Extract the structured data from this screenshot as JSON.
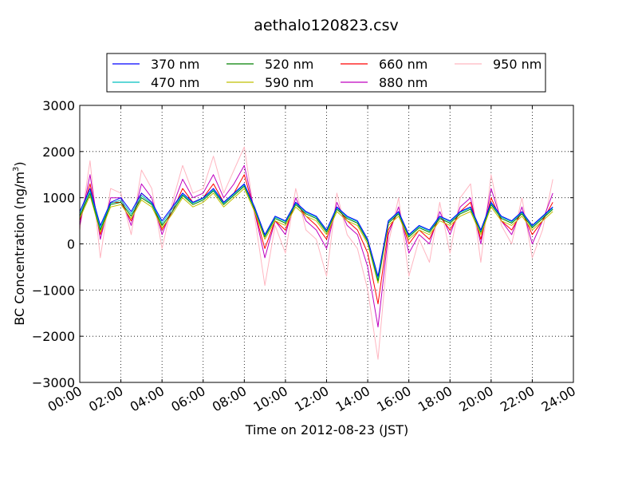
{
  "chart_data": {
    "type": "line",
    "title": "aethalo120823.csv",
    "xlabel": "Time on 2012-08-23 (JST)",
    "ylabel": "BC Concentration (ng/m³)",
    "ylabel_main": "BC Concentration (ng/m",
    "ylabel_sup": "3",
    "ylabel_tail": ")",
    "xlim": [
      "00:00",
      "24:00"
    ],
    "ylim": [
      -3000,
      3000
    ],
    "x_ticks": [
      "00:00",
      "02:00",
      "04:00",
      "06:00",
      "08:00",
      "10:00",
      "12:00",
      "14:00",
      "16:00",
      "18:00",
      "20:00",
      "22:00",
      "24:00"
    ],
    "y_ticks": [
      "3000",
      "2000",
      "1000",
      "0",
      "−1000",
      "−2000",
      "−3000"
    ],
    "grid": true,
    "legend_position": "top-center",
    "x_times": [
      "00:00",
      "00:30",
      "01:00",
      "01:30",
      "02:00",
      "02:30",
      "03:00",
      "03:30",
      "04:00",
      "04:30",
      "05:00",
      "05:30",
      "06:00",
      "06:30",
      "07:00",
      "07:30",
      "08:00",
      "08:30",
      "09:00",
      "09:30",
      "10:00",
      "10:30",
      "11:00",
      "11:30",
      "12:00",
      "12:30",
      "13:00",
      "13:30",
      "14:00",
      "14:30",
      "15:00",
      "15:30",
      "16:00",
      "16:30",
      "17:00",
      "17:30",
      "18:00",
      "18:30",
      "19:00",
      "19:30",
      "20:00",
      "20:30",
      "21:00",
      "21:30",
      "22:00",
      "22:30",
      "23:00"
    ],
    "series": [
      {
        "name": "370 nm",
        "color": "#0000ff",
        "values": [
          700,
          1200,
          400,
          900,
          1000,
          700,
          1100,
          900,
          500,
          800,
          1100,
          900,
          1000,
          1200,
          900,
          1100,
          1300,
          800,
          200,
          600,
          500,
          900,
          700,
          600,
          300,
          800,
          600,
          500,
          100,
          -700,
          500,
          700,
          200,
          400,
          300,
          600,
          500,
          700,
          800,
          300,
          900,
          600,
          500,
          700,
          400,
          600,
          800
        ]
      },
      {
        "name": "470 nm",
        "color": "#00bfbf",
        "values": [
          650,
          1150,
          350,
          880,
          950,
          650,
          1050,
          870,
          450,
          760,
          1070,
          880,
          980,
          1170,
          880,
          1080,
          1280,
          780,
          180,
          580,
          480,
          880,
          680,
          580,
          280,
          780,
          580,
          480,
          80,
          -750,
          480,
          680,
          180,
          380,
          280,
          580,
          480,
          680,
          780,
          280,
          880,
          580,
          480,
          680,
          380,
          580,
          780
        ]
      },
      {
        "name": "520 nm",
        "color": "#008000",
        "values": [
          600,
          1100,
          300,
          850,
          900,
          600,
          1000,
          850,
          400,
          700,
          1050,
          850,
          950,
          1150,
          850,
          1050,
          1250,
          750,
          150,
          550,
          450,
          850,
          650,
          550,
          250,
          750,
          550,
          450,
          50,
          -800,
          450,
          650,
          150,
          350,
          250,
          550,
          450,
          650,
          750,
          250,
          850,
          550,
          450,
          650,
          350,
          550,
          750
        ]
      },
      {
        "name": "590 nm",
        "color": "#bfbf00",
        "values": [
          550,
          1050,
          250,
          800,
          850,
          550,
          950,
          800,
          350,
          650,
          1000,
          800,
          900,
          1100,
          800,
          1000,
          1200,
          700,
          100,
          500,
          400,
          800,
          600,
          500,
          200,
          700,
          500,
          400,
          0,
          -850,
          400,
          600,
          100,
          300,
          200,
          500,
          400,
          600,
          700,
          200,
          800,
          500,
          400,
          600,
          300,
          500,
          700
        ]
      },
      {
        "name": "660 nm",
        "color": "#ff0000",
        "values": [
          500,
          1300,
          200,
          900,
          900,
          500,
          1100,
          900,
          300,
          700,
          1200,
          900,
          1000,
          1300,
          900,
          1100,
          1500,
          700,
          -100,
          500,
          300,
          900,
          600,
          400,
          100,
          800,
          500,
          300,
          -200,
          -1300,
          300,
          700,
          0,
          300,
          100,
          600,
          300,
          700,
          900,
          100,
          1000,
          500,
          300,
          700,
          200,
          500,
          900
        ]
      },
      {
        "name": "880 nm",
        "color": "#bf00bf",
        "values": [
          400,
          1500,
          100,
          1000,
          1000,
          400,
          1300,
          1000,
          200,
          800,
          1400,
          1000,
          1100,
          1500,
          1000,
          1300,
          1700,
          700,
          -300,
          500,
          200,
          1000,
          500,
          300,
          -100,
          900,
          400,
          200,
          -500,
          -1800,
          200,
          800,
          -200,
          200,
          0,
          700,
          200,
          800,
          1000,
          0,
          1200,
          500,
          200,
          800,
          0,
          500,
          1100
        ]
      },
      {
        "name": "950 nm",
        "color": "#ffb6c1",
        "values": [
          300,
          1800,
          -300,
          1200,
          1100,
          200,
          1600,
          1200,
          -100,
          900,
          1700,
          1100,
          1200,
          1900,
          1100,
          1600,
          2100,
          600,
          -900,
          400,
          -200,
          1200,
          300,
          100,
          -700,
          1100,
          200,
          -100,
          -1000,
          -2500,
          0,
          1000,
          -700,
          100,
          -400,
          900,
          -200,
          1000,
          1300,
          -400,
          1500,
          400,
          0,
          1000,
          -300,
          300,
          1400
        ]
      }
    ]
  }
}
